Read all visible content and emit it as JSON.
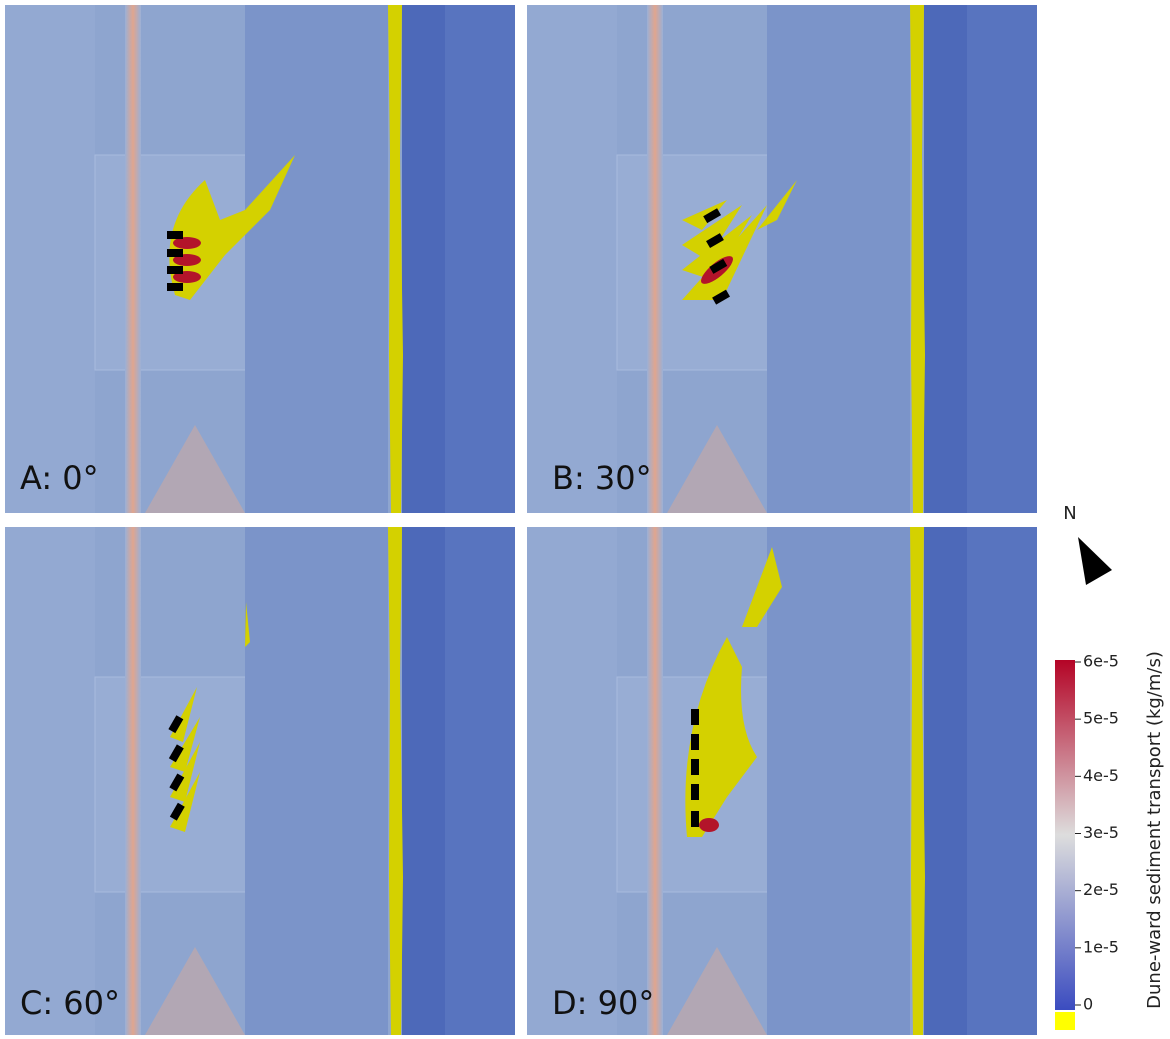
{
  "panels": [
    {
      "label": "A: 0°"
    },
    {
      "label": "B: 30°"
    },
    {
      "label": "C: 60°"
    },
    {
      "label": "D: 90°"
    }
  ],
  "north": "N",
  "colorbar": {
    "title": "Dune-ward sediment transport (kg/m/s)",
    "lim": [
      0,
      6e-05
    ],
    "ticks": [
      {
        "value": 6e-05,
        "label": "6e-5"
      },
      {
        "value": 5e-05,
        "label": "5e-5"
      },
      {
        "value": 4e-05,
        "label": "4e-5"
      },
      {
        "value": 3e-05,
        "label": "3e-5"
      },
      {
        "value": 2e-05,
        "label": "2e-5"
      },
      {
        "value": 1e-05,
        "label": "1e-5"
      },
      0
    ]
  }
}
